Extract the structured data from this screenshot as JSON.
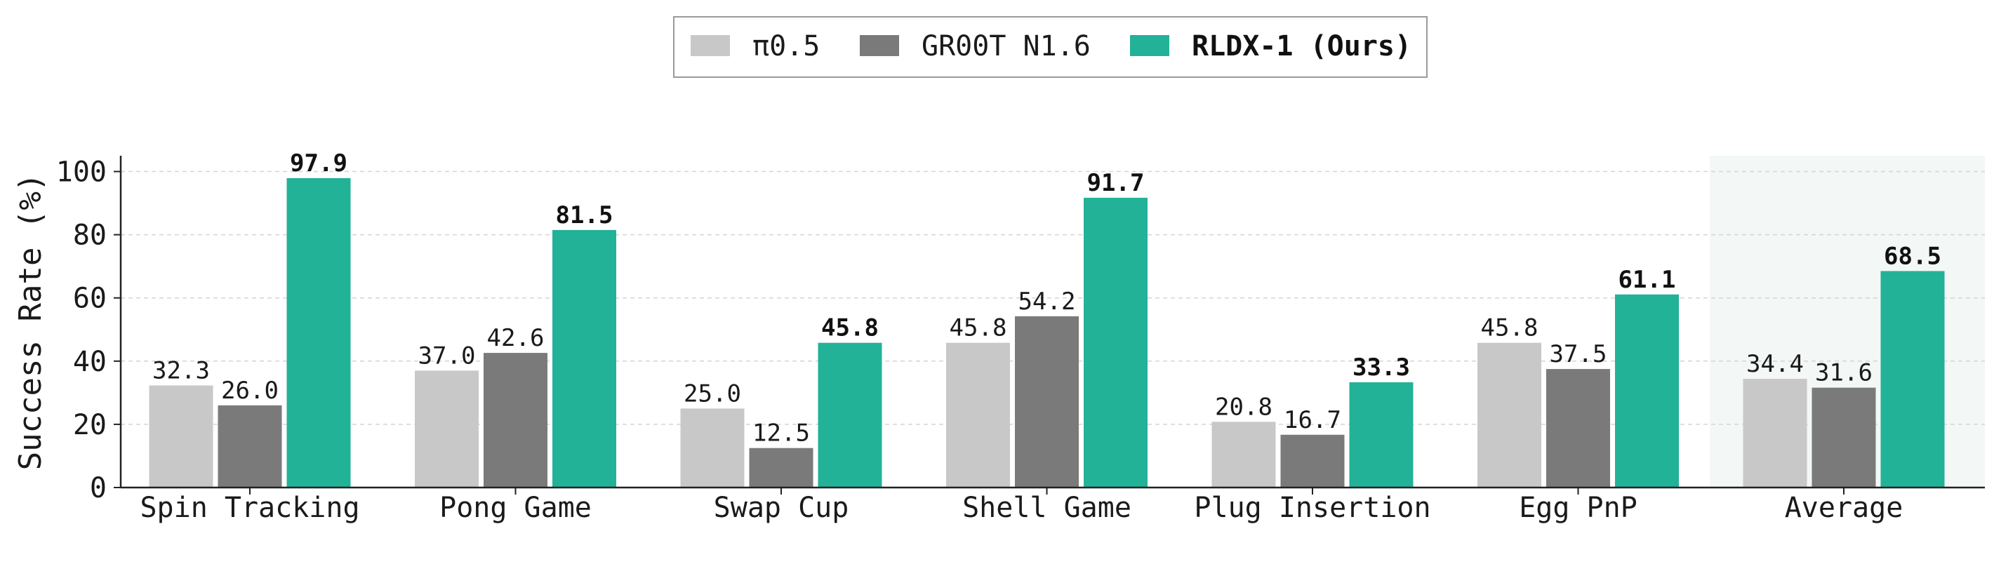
{
  "chart_data": {
    "type": "bar",
    "categories": [
      "Spin Tracking",
      "Pong Game",
      "Swap Cup",
      "Shell Game",
      "Plug Insertion",
      "Egg PnP",
      "Average"
    ],
    "series": [
      {
        "name": "π0.5",
        "values": [
          32.3,
          37.0,
          25.0,
          45.8,
          20.8,
          45.8,
          34.4
        ],
        "color": "#c8c8c8",
        "bold": false
      },
      {
        "name": "GR00T N1.6",
        "values": [
          26.0,
          42.6,
          12.5,
          54.2,
          16.7,
          37.5,
          31.6
        ],
        "color": "#7a7a7a",
        "bold": false
      },
      {
        "name": "RLDX-1 (Ours)",
        "values": [
          97.9,
          81.5,
          45.8,
          91.7,
          33.3,
          61.1,
          68.5
        ],
        "color": "#22b298",
        "bold": true
      }
    ],
    "ylabel": "Success Rate (%)",
    "xlabel": "",
    "ylim": [
      0,
      105
    ],
    "yticks": [
      0,
      20,
      40,
      60,
      80,
      100
    ],
    "grid": "horizontal dashed",
    "legend": "top-center",
    "highlight_category": "Average",
    "highlight_color": "#f3f7f5"
  }
}
